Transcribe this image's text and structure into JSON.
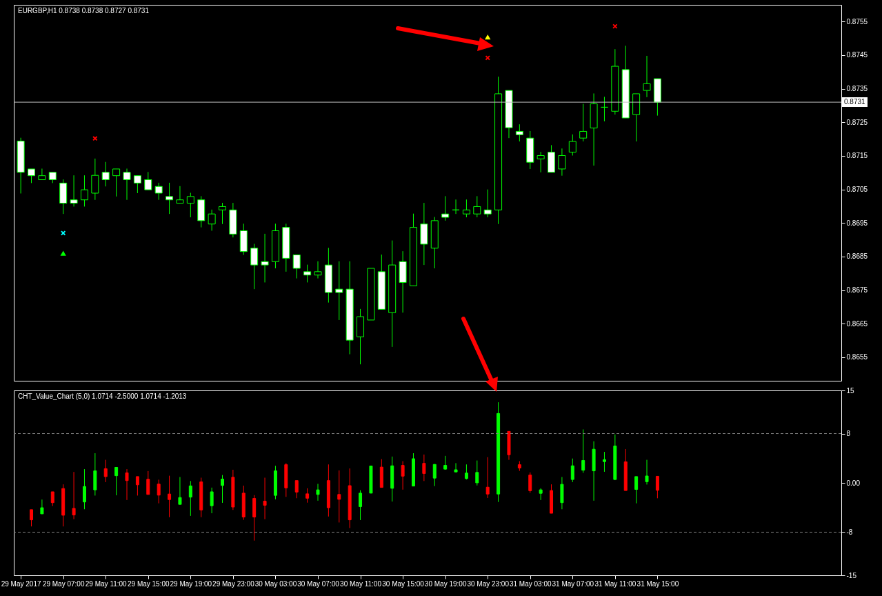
{
  "chart_data": [
    {
      "type": "candlestick",
      "title": "EURGBP,H1  0.8738 0.8738 0.8727 0.8731",
      "tick_labels": "y",
      "color": "#00ff00",
      "x": [
        "2017-05-29T03:00",
        "2017-05-29T04:00",
        "2017-05-29T05:00",
        "2017-05-29T06:00",
        "2017-05-29T07:00",
        "2017-05-29T08:00",
        "2017-05-29T09:00",
        "2017-05-29T10:00",
        "2017-05-29T11:00",
        "2017-05-29T12:00",
        "2017-05-29T13:00",
        "2017-05-29T14:00",
        "2017-05-29T15:00",
        "2017-05-29T16:00",
        "2017-05-29T17:00",
        "2017-05-29T18:00",
        "2017-05-29T19:00",
        "2017-05-29T20:00",
        "2017-05-29T21:00",
        "2017-05-29T22:00",
        "2017-05-29T23:00",
        "2017-05-30T00:00",
        "2017-05-30T01:00",
        "2017-05-30T02:00",
        "2017-05-30T03:00",
        "2017-05-30T04:00",
        "2017-05-30T05:00",
        "2017-05-30T06:00",
        "2017-05-30T07:00",
        "2017-05-30T08:00",
        "2017-05-30T09:00",
        "2017-05-30T10:00",
        "2017-05-30T11:00",
        "2017-05-30T12:00",
        "2017-05-30T13:00",
        "2017-05-30T14:00",
        "2017-05-30T15:00",
        "2017-05-30T16:00",
        "2017-05-30T17:00",
        "2017-05-30T18:00",
        "2017-05-30T19:00",
        "2017-05-30T20:00",
        "2017-05-30T21:00",
        "2017-05-30T22:00",
        "2017-05-30T23:00",
        "2017-05-31T00:00",
        "2017-05-31T01:00",
        "2017-05-31T02:00",
        "2017-05-31T03:00",
        "2017-05-31T04:00",
        "2017-05-31T05:00",
        "2017-05-31T06:00",
        "2017-05-31T07:00",
        "2017-05-31T08:00",
        "2017-05-31T09:00",
        "2017-05-31T10:00",
        "2017-05-31T11:00",
        "2017-05-31T12:00",
        "2017-05-31T13:00",
        "2017-05-31T14:00",
        "2017-05-31T15:00"
      ],
      "ohlc": [
        [
          0.87194,
          0.87204,
          0.87038,
          0.87101
        ],
        [
          0.87111,
          0.87111,
          0.87069,
          0.87091
        ],
        [
          0.87079,
          0.87112,
          0.87079,
          0.87091
        ],
        [
          0.87101,
          0.87101,
          0.87069,
          0.87079
        ],
        [
          0.87069,
          0.8708,
          0.86977,
          0.87009
        ],
        [
          0.87019,
          0.87092,
          0.86999,
          0.87009
        ],
        [
          0.87019,
          0.87092,
          0.86999,
          0.87049
        ],
        [
          0.87039,
          0.87142,
          0.87019,
          0.87092
        ],
        [
          0.87101,
          0.87132,
          0.87059,
          0.87079
        ],
        [
          0.87091,
          0.87111,
          0.87029,
          0.87111
        ],
        [
          0.87101,
          0.87112,
          0.87019,
          0.87079
        ],
        [
          0.87091,
          0.87091,
          0.87039,
          0.87069
        ],
        [
          0.87079,
          0.87102,
          0.87049,
          0.87049
        ],
        [
          0.87059,
          0.8707,
          0.87019,
          0.87039
        ],
        [
          0.87029,
          0.8707,
          0.86977,
          0.87019
        ],
        [
          0.87009,
          0.8706,
          0.87009,
          0.87019
        ],
        [
          0.87009,
          0.8704,
          0.86967,
          0.87029
        ],
        [
          0.87019,
          0.8703,
          0.86937,
          0.86957
        ],
        [
          0.86947,
          0.8699,
          0.86927,
          0.86977
        ],
        [
          0.86989,
          0.8701,
          0.86947,
          0.86999
        ],
        [
          0.86989,
          0.8701,
          0.86907,
          0.86917
        ],
        [
          0.86927,
          0.86948,
          0.86855,
          0.86865
        ],
        [
          0.86875,
          0.86888,
          0.86753,
          0.86825
        ],
        [
          0.86835,
          0.86918,
          0.86773,
          0.86825
        ],
        [
          0.86835,
          0.86948,
          0.86815,
          0.86927
        ],
        [
          0.86937,
          0.86948,
          0.86805,
          0.86845
        ],
        [
          0.86855,
          0.86855,
          0.86785,
          0.86815
        ],
        [
          0.86805,
          0.86826,
          0.86773,
          0.86795
        ],
        [
          0.86795,
          0.86836,
          0.86785,
          0.86805
        ],
        [
          0.86825,
          0.86876,
          0.86713,
          0.86743
        ],
        [
          0.86753,
          0.86836,
          0.86661,
          0.86743
        ],
        [
          0.86753,
          0.86836,
          0.86559,
          0.86601
        ],
        [
          0.86611,
          0.86694,
          0.86529,
          0.86671
        ],
        [
          0.86661,
          0.86815,
          0.86661,
          0.86815
        ],
        [
          0.86805,
          0.86856,
          0.86693,
          0.86693
        ],
        [
          0.86683,
          0.86898,
          0.86581,
          0.86825
        ],
        [
          0.86835,
          0.86866,
          0.86683,
          0.86773
        ],
        [
          0.86763,
          0.86978,
          0.86763,
          0.86937
        ],
        [
          0.86947,
          0.8701,
          0.86825,
          0.86887
        ],
        [
          0.86875,
          0.86968,
          0.86815,
          0.86957
        ],
        [
          0.86977,
          0.8703,
          0.86957,
          0.86967
        ],
        [
          0.86989,
          0.8702,
          0.86977,
          0.86989
        ],
        [
          0.86977,
          0.8702,
          0.86967,
          0.86989
        ],
        [
          0.86977,
          0.8703,
          0.86967,
          0.86999
        ],
        [
          0.86989,
          0.8705,
          0.86967,
          0.86977
        ],
        [
          0.86989,
          0.87386,
          0.86947,
          0.87335
        ],
        [
          0.87345,
          0.87345,
          0.87203,
          0.87234
        ],
        [
          0.87223,
          0.87244,
          0.87193,
          0.87213
        ],
        [
          0.87203,
          0.87224,
          0.87111,
          0.87131
        ],
        [
          0.87141,
          0.87162,
          0.87101,
          0.87151
        ],
        [
          0.87161,
          0.87182,
          0.87101,
          0.87101
        ],
        [
          0.87111,
          0.87172,
          0.87091,
          0.87151
        ],
        [
          0.87161,
          0.87214,
          0.87151,
          0.87193
        ],
        [
          0.87203,
          0.87305,
          0.87193,
          0.87223
        ],
        [
          0.87233,
          0.87336,
          0.87121,
          0.87305
        ],
        [
          0.87295,
          0.87326,
          0.87253,
          0.87295
        ],
        [
          0.87283,
          0.87468,
          0.87273,
          0.87417
        ],
        [
          0.87407,
          0.87478,
          0.87263,
          0.87263
        ],
        [
          0.87273,
          0.87335,
          0.87193,
          0.87335
        ],
        [
          0.87345,
          0.87448,
          0.87325,
          0.87365
        ],
        [
          0.8738,
          0.8738,
          0.8727,
          0.8731
        ]
      ],
      "colors": [
        "#ffffff",
        "#ffffff",
        "#000000",
        "#ffffff",
        "#ffffff",
        "#ffffff",
        "#000000",
        "#000000",
        "#ffffff",
        "#000000",
        "#ffffff",
        "#ffffff",
        "#ffffff",
        "#ffffff",
        "#ffffff",
        "#000000",
        "#000000",
        "#ffffff",
        "#000000",
        "#000000",
        "#ffffff",
        "#ffffff",
        "#ffffff",
        "#ffffff",
        "#000000",
        "#ffffff",
        "#ffffff",
        "#ffffff",
        "#000000",
        "#ffffff",
        "#ffffff",
        "#ffffff",
        "#000000",
        "#000000",
        "#ffffff",
        "#000000",
        "#ffffff",
        "#000000",
        "#ffffff",
        "#000000",
        "#ffffff",
        "#00ff00",
        "#000000",
        "#000000",
        "#ffffff",
        "#000000",
        "#ffffff",
        "#ffffff",
        "#ffffff",
        "#000000",
        "#ffffff",
        "#000000",
        "#000000",
        "#000000",
        "#000000",
        "#00ff00",
        "#000000",
        "#ffffff",
        "#000000",
        "#000000",
        "#ffffff"
      ],
      "series": [
        {
          "type": "scatter",
          "color": "#ff0000",
          "marker": "cross",
          "x": [
            "2017-05-29T10:00",
            "2017-05-30T23:00",
            "2017-05-31T11:00"
          ],
          "values": [
            0.87202,
            0.87442,
            0.87536
          ]
        },
        {
          "type": "scatter",
          "color": "#00ffff",
          "marker": "cross",
          "x": [
            "2017-05-29T07:00"
          ],
          "values": [
            0.8692
          ]
        },
        {
          "type": "scatter",
          "color": "#00ff00",
          "marker": "triangle",
          "x": [
            "2017-05-29T07:00"
          ],
          "values": [
            0.8686
          ]
        },
        {
          "type": "scatter",
          "color": "#ffff00",
          "marker": "triangle",
          "x": [
            "2017-05-30T23:00"
          ],
          "values": [
            0.87504
          ]
        }
      ],
      "ref_lines": [
        {
          "axis": "y",
          "value": 0.8731,
          "label": "0.8731",
          "color": "#c0c0c0"
        }
      ],
      "xlim": [
        "2017-05-29T02:40",
        "2017-06-01T08:00"
      ],
      "ylim": [
        0.8648,
        0.876
      ],
      "yticks": [
        0.8655,
        0.8665,
        0.8675,
        0.8685,
        0.8695,
        0.8705,
        0.8715,
        0.8725,
        0.8735,
        0.8745,
        0.8755
      ]
    },
    {
      "type": "candlestick",
      "title": "CHT_Value_Chart (5,0) 1.0714 -2.5000 1.0714 -1.2013",
      "x": [
        "2017-05-29T04:00",
        "2017-05-29T05:00",
        "2017-05-29T06:00",
        "2017-05-29T07:00",
        "2017-05-29T08:00",
        "2017-05-29T09:00",
        "2017-05-29T10:00",
        "2017-05-29T11:00",
        "2017-05-29T12:00",
        "2017-05-29T13:00",
        "2017-05-29T14:00",
        "2017-05-29T15:00",
        "2017-05-29T16:00",
        "2017-05-29T17:00",
        "2017-05-29T18:00",
        "2017-05-29T19:00",
        "2017-05-29T20:00",
        "2017-05-29T21:00",
        "2017-05-29T22:00",
        "2017-05-29T23:00",
        "2017-05-30T00:00",
        "2017-05-30T01:00",
        "2017-05-30T02:00",
        "2017-05-30T03:00",
        "2017-05-30T04:00",
        "2017-05-30T05:00",
        "2017-05-30T06:00",
        "2017-05-30T07:00",
        "2017-05-30T08:00",
        "2017-05-30T09:00",
        "2017-05-30T10:00",
        "2017-05-30T11:00",
        "2017-05-30T12:00",
        "2017-05-30T13:00",
        "2017-05-30T14:00",
        "2017-05-30T15:00",
        "2017-05-30T16:00",
        "2017-05-30T17:00",
        "2017-05-30T18:00",
        "2017-05-30T19:00",
        "2017-05-30T20:00",
        "2017-05-30T21:00",
        "2017-05-30T22:00",
        "2017-05-30T23:00",
        "2017-05-31T00:00",
        "2017-05-31T01:00",
        "2017-05-31T02:00",
        "2017-05-31T03:00",
        "2017-05-31T04:00",
        "2017-05-31T05:00",
        "2017-05-31T06:00",
        "2017-05-31T07:00",
        "2017-05-31T08:00",
        "2017-05-31T09:00",
        "2017-05-31T10:00",
        "2017-05-31T11:00",
        "2017-05-31T12:00",
        "2017-05-31T13:00",
        "2017-05-31T14:00",
        "2017-05-31T15:00"
      ],
      "ohlc": [
        [
          -4.35,
          -4.35,
          -7.07,
          -6.0
        ],
        [
          -5.03,
          -2.71,
          -5.03,
          -4.03
        ],
        [
          -1.45,
          -1.45,
          -3.75,
          -3.21
        ],
        [
          -0.92,
          -0.24,
          -7.07,
          -5.25
        ],
        [
          -4.14,
          1.77,
          -5.89,
          -5.21
        ],
        [
          -3.1,
          2.23,
          -4.28,
          -0.59
        ],
        [
          -1.13,
          4.81,
          -2.06,
          1.95
        ],
        [
          2.3,
          3.74,
          0.12,
          1.02
        ],
        [
          1.16,
          2.52,
          -2.02,
          2.52
        ],
        [
          1.63,
          2.23,
          -2.78,
          0.37
        ],
        [
          1.02,
          1.02,
          -2.06,
          -0.31
        ],
        [
          0.59,
          1.91,
          -1.88,
          -1.88
        ],
        [
          -0.2,
          0.52,
          -3.32,
          -1.99
        ],
        [
          -1.81,
          1.16,
          -5.57,
          -2.71
        ],
        [
          -3.49,
          0.95,
          -3.49,
          -2.38
        ],
        [
          -2.31,
          0.3,
          -5.36,
          -0.49
        ],
        [
          0.16,
          0.84,
          -5.57,
          -4.39
        ],
        [
          -3.71,
          -0.77,
          -4.93,
          -1.45
        ],
        [
          -0.42,
          1.27,
          -3.24,
          0.62
        ],
        [
          0.91,
          2.13,
          -4.39,
          -3.92
        ],
        [
          -1.67,
          -0.45,
          -6.0,
          -5.54
        ],
        [
          -2.53,
          -1.99,
          -9.37,
          -5.54
        ],
        [
          -2.96,
          0.84,
          -5.89,
          -3.64
        ],
        [
          -2.03,
          2.77,
          -2.67,
          1.95
        ],
        [
          2.95,
          3.2,
          -2.27,
          -0.81
        ],
        [
          0.37,
          0.37,
          -2.49,
          -1.49
        ],
        [
          -1.78,
          -0.88,
          -3.21,
          -2.49
        ],
        [
          -1.88,
          -0.16,
          -2.89,
          -1.13
        ],
        [
          0.37,
          2.99,
          -5.46,
          -4.03
        ],
        [
          -1.88,
          2.02,
          -6.43,
          -2.67
        ],
        [
          -0.45,
          2.34,
          -7.33,
          -6.0
        ],
        [
          -3.85,
          -1.2,
          -6.04,
          -1.67
        ],
        [
          -1.67,
          2.74,
          -1.67,
          2.74
        ],
        [
          2.56,
          3.85,
          -0.74,
          -0.74
        ],
        [
          -0.88,
          4.27,
          -3.03,
          2.77
        ],
        [
          2.84,
          3.52,
          -1.1,
          1.09
        ],
        [
          -0.52,
          4.81,
          -0.52,
          3.92
        ],
        [
          3.17,
          4.6,
          0.3,
          1.52
        ],
        [
          0.77,
          3.06,
          -0.52,
          2.99
        ],
        [
          2.23,
          4.38,
          2.13,
          2.84
        ],
        [
          1.77,
          3.2,
          1.77,
          2.13
        ],
        [
          0.7,
          2.99,
          0.55,
          1.59
        ],
        [
          0.01,
          3.63,
          -0.42,
          1.7
        ],
        [
          -0.7,
          4.17,
          -2.46,
          -1.81
        ],
        [
          -1.81,
          13.08,
          -3.1,
          11.26
        ],
        [
          8.36,
          8.36,
          3.74,
          4.56
        ],
        [
          2.95,
          3.52,
          1.95,
          2.41
        ],
        [
          1.27,
          1.7,
          -1.6,
          -1.27
        ],
        [
          -1.7,
          -0.88,
          -2.78,
          -1.13
        ],
        [
          -1.24,
          -0.24,
          -4.93,
          -4.93
        ],
        [
          -3.21,
          0.95,
          -4.28,
          -0.24
        ],
        [
          0.55,
          3.95,
          0.12,
          2.77
        ],
        [
          2.06,
          8.68,
          1.63,
          3.63
        ],
        [
          1.95,
          6.75,
          -2.89,
          5.46
        ],
        [
          3.45,
          5.03,
          1.8,
          3.77
        ],
        [
          0.55,
          7.86,
          0.44,
          5.99
        ],
        [
          3.42,
          5.49,
          -1.24,
          -1.24
        ],
        [
          -1.06,
          1.02,
          -3.32,
          1.02
        ],
        [
          0.19,
          3.74,
          -0.27,
          1.12
        ],
        [
          1.0714,
          1.0714,
          -2.5,
          -1.2013
        ]
      ],
      "colors": [
        "#ff0000",
        "#00ff00",
        "#ff0000",
        "#ff0000",
        "#ff0000",
        "#00ff00",
        "#00ff00",
        "#ff0000",
        "#00ff00",
        "#ff0000",
        "#ff0000",
        "#ff0000",
        "#ff0000",
        "#ff0000",
        "#00ff00",
        "#00ff00",
        "#ff0000",
        "#00ff00",
        "#00ff00",
        "#ff0000",
        "#ff0000",
        "#ff0000",
        "#ff0000",
        "#00ff00",
        "#ff0000",
        "#ff0000",
        "#ff0000",
        "#00ff00",
        "#ff0000",
        "#ff0000",
        "#ff0000",
        "#00ff00",
        "#00ff00",
        "#ff0000",
        "#00ff00",
        "#ff0000",
        "#00ff00",
        "#ff0000",
        "#00ff00",
        "#00ff00",
        "#00ff00",
        "#00ff00",
        "#00ff00",
        "#ff0000",
        "#00ff00",
        "#ff0000",
        "#ff0000",
        "#ff0000",
        "#00ff00",
        "#ff0000",
        "#00ff00",
        "#00ff00",
        "#00ff00",
        "#00ff00",
        "#00ff00",
        "#00ff00",
        "#ff0000",
        "#00ff00",
        "#00ff00",
        "#ff0000"
      ],
      "ref_lines": [
        {
          "axis": "y",
          "value": 8,
          "color": "#808080",
          "line_style": "dashed"
        },
        {
          "axis": "y",
          "value": -8,
          "color": "#808080",
          "line_style": "dashed"
        }
      ],
      "xlim": [
        "2017-05-29T02:40",
        "2017-06-01T08:00"
      ],
      "ylim": [
        -15,
        15
      ],
      "yticks": [
        -15,
        -8,
        {
          "value": 0,
          "label": "0.00"
        },
        8,
        15
      ],
      "xticks": [
        {
          "value": "2017-05-29T03:00",
          "label": "29 May 2017"
        },
        {
          "value": "2017-05-29T07:00",
          "label": "29 May 07:00"
        },
        {
          "value": "2017-05-29T11:00",
          "label": "29 May 11:00"
        },
        {
          "value": "2017-05-29T15:00",
          "label": "29 May 15:00"
        },
        {
          "value": "2017-05-29T19:00",
          "label": "29 May 19:00"
        },
        {
          "value": "2017-05-29T23:00",
          "label": "29 May 23:00"
        },
        {
          "value": "2017-05-30T03:00",
          "label": "30 May 03:00"
        },
        {
          "value": "2017-05-30T07:00",
          "label": "30 May 07:00"
        },
        {
          "value": "2017-05-30T11:00",
          "label": "30 May 11:00"
        },
        {
          "value": "2017-05-30T15:00",
          "label": "30 May 15:00"
        },
        {
          "value": "2017-05-30T19:00",
          "label": "30 May 19:00"
        },
        {
          "value": "2017-05-30T23:00",
          "label": "30 May 23:00"
        },
        {
          "value": "2017-05-31T03:00",
          "label": "31 May 03:00"
        },
        {
          "value": "2017-05-31T07:00",
          "label": "31 May 07:00"
        },
        {
          "value": "2017-05-31T11:00",
          "label": "31 May 11:00"
        },
        {
          "value": "2017-05-31T15:00",
          "label": "31 May 15:00"
        }
      ]
    }
  ]
}
